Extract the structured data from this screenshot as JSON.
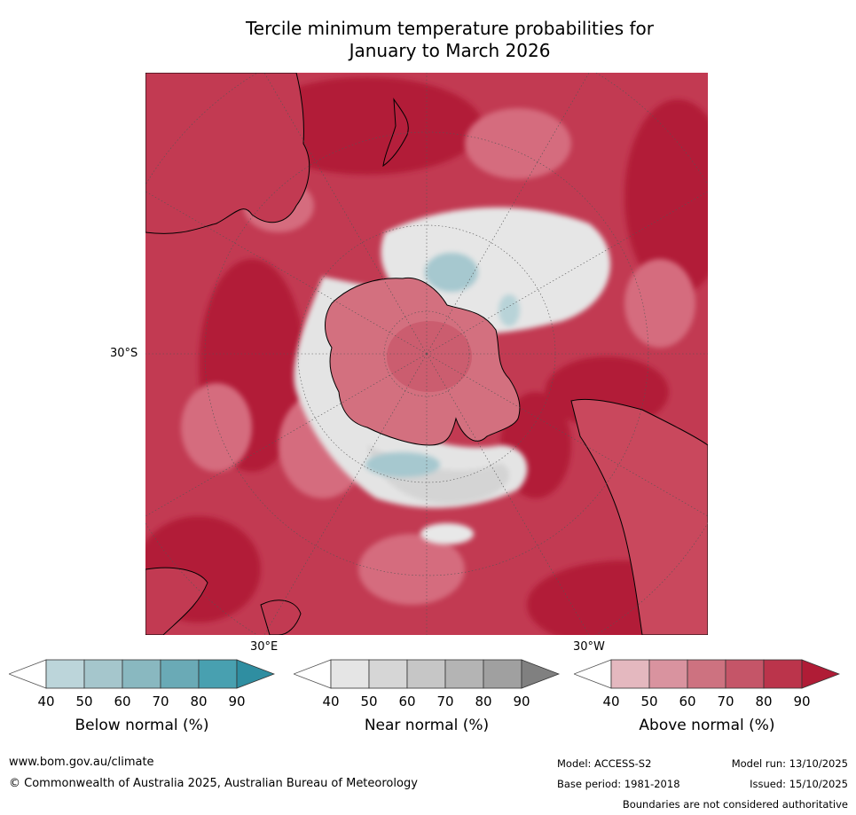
{
  "title": {
    "line1": "Tercile minimum temperature probabilities for",
    "line2": "January to March 2026"
  },
  "map": {
    "projection": "south-polar-stereographic",
    "latitude_label": "30°S",
    "longitude_labels": [
      "30°E",
      "30°W"
    ],
    "colors": {
      "above_dark": "#b51f3c",
      "above_mid": "#c94a5e",
      "above_light": "#d9798a",
      "above_pale": "#e6a7b2",
      "near": "#e8e8e8",
      "below": "#a6c8cf",
      "land_outline": "#000000",
      "grid": "#555555"
    }
  },
  "colorbars": [
    {
      "label": "Below normal (%)",
      "ticks": [
        "40",
        "50",
        "60",
        "70",
        "80",
        "90"
      ],
      "colors": [
        "#ffffff",
        "#bcd5da",
        "#a5c6cc",
        "#89b8c0",
        "#6aaab6",
        "#48a0b0",
        "#2f8ea1"
      ]
    },
    {
      "label": "Near normal (%)",
      "ticks": [
        "40",
        "50",
        "60",
        "70",
        "80",
        "90"
      ],
      "colors": [
        "#ffffff",
        "#e5e5e5",
        "#d6d6d6",
        "#c6c6c6",
        "#b4b4b4",
        "#a0a0a0",
        "#808080"
      ]
    },
    {
      "label": "Above normal (%)",
      "ticks": [
        "40",
        "50",
        "60",
        "70",
        "80",
        "90"
      ],
      "colors": [
        "#ffffff",
        "#e4b8bf",
        "#d9939f",
        "#cd7280",
        "#c55568",
        "#bb344b",
        "#b01c36"
      ]
    }
  ],
  "footer": {
    "website": "www.bom.gov.au/climate",
    "copyright": "© Commonwealth of Australia 2025, Australian Bureau of Meteorology",
    "model": "Model: ACCESS-S2",
    "model_run": "Model run: 13/10/2025",
    "base_period": "Base period: 1981-2018",
    "issued": "Issued: 15/10/2025",
    "disclaimer": "Boundaries are not considered authoritative"
  }
}
